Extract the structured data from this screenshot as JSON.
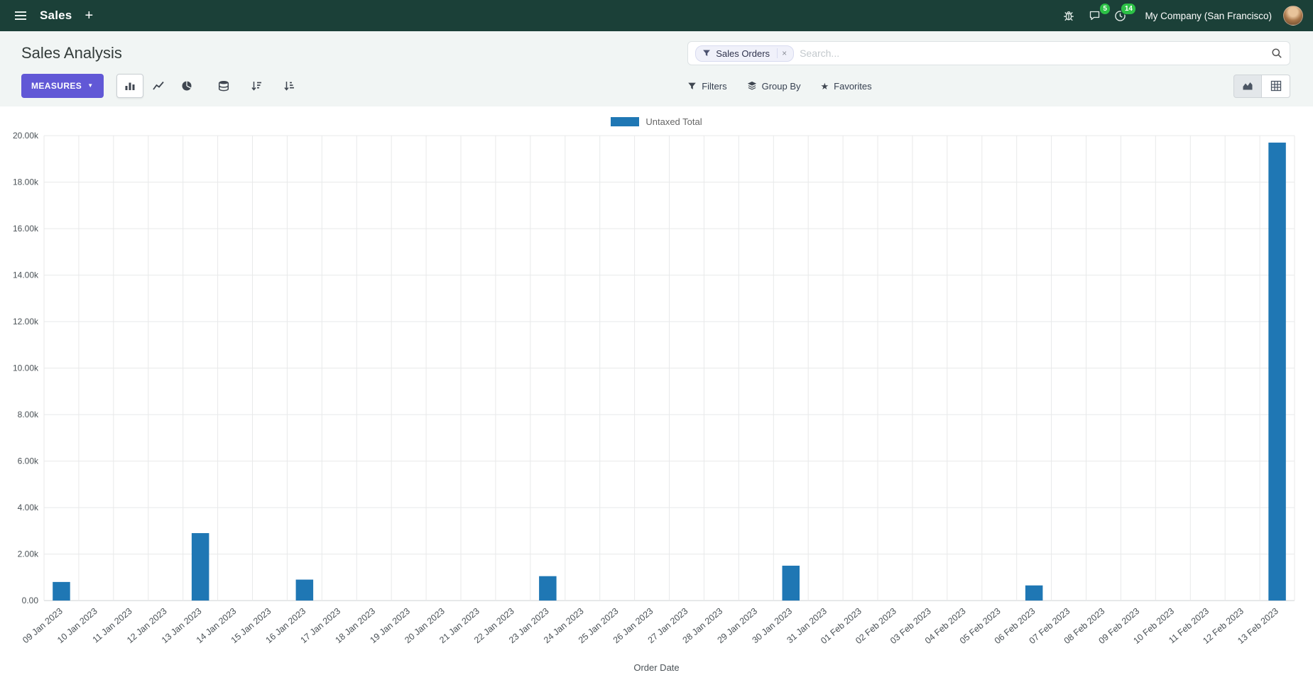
{
  "navbar": {
    "app_name": "Sales",
    "plus_label": "+",
    "company": "My Company (San Francisco)",
    "messages_badge": "5",
    "activities_badge": "14"
  },
  "glyphs": {
    "caret_down": "▼",
    "star": "★",
    "close": "×"
  },
  "control_panel": {
    "title": "Sales Analysis",
    "search": {
      "facet_label": "Sales Orders",
      "placeholder": "Search..."
    },
    "measures_label": "MEASURES",
    "filters_label": "Filters",
    "group_by_label": "Group By",
    "favorites_label": "Favorites"
  },
  "chart_data": {
    "type": "bar",
    "title": "",
    "legend_position": "top",
    "grid": true,
    "legend": [
      {
        "name": "Untaxed Total",
        "color": "#1f77b4"
      }
    ],
    "xlabel": "Order Date",
    "ylabel": "",
    "ylim": [
      0,
      20000
    ],
    "ytick_step": 2000,
    "ytick_labels": [
      "0.00",
      "2.00k",
      "4.00k",
      "6.00k",
      "8.00k",
      "10.00k",
      "12.00k",
      "14.00k",
      "16.00k",
      "18.00k",
      "20.00k"
    ],
    "categories": [
      "09 Jan 2023",
      "10 Jan 2023",
      "11 Jan 2023",
      "12 Jan 2023",
      "13 Jan 2023",
      "14 Jan 2023",
      "15 Jan 2023",
      "16 Jan 2023",
      "17 Jan 2023",
      "18 Jan 2023",
      "19 Jan 2023",
      "20 Jan 2023",
      "21 Jan 2023",
      "22 Jan 2023",
      "23 Jan 2023",
      "24 Jan 2023",
      "25 Jan 2023",
      "26 Jan 2023",
      "27 Jan 2023",
      "28 Jan 2023",
      "29 Jan 2023",
      "30 Jan 2023",
      "31 Jan 2023",
      "01 Feb 2023",
      "02 Feb 2023",
      "03 Feb 2023",
      "04 Feb 2023",
      "05 Feb 2023",
      "06 Feb 2023",
      "07 Feb 2023",
      "08 Feb 2023",
      "09 Feb 2023",
      "10 Feb 2023",
      "11 Feb 2023",
      "12 Feb 2023",
      "13 Feb 2023"
    ],
    "values": [
      800,
      0,
      0,
      0,
      2900,
      0,
      0,
      900,
      0,
      0,
      0,
      0,
      0,
      0,
      1050,
      0,
      0,
      0,
      0,
      0,
      0,
      1500,
      0,
      0,
      0,
      0,
      0,
      0,
      650,
      0,
      0,
      0,
      0,
      0,
      0,
      19700
    ]
  }
}
